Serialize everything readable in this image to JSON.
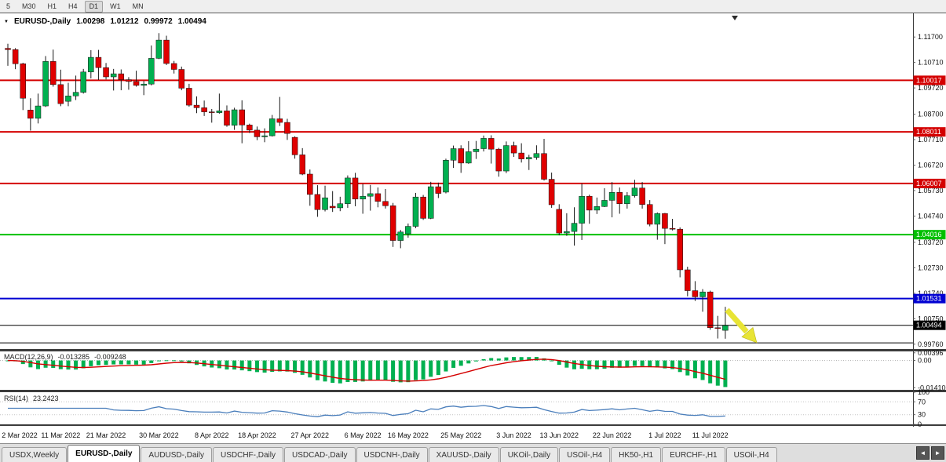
{
  "toolbar": {
    "timeframes": [
      "5",
      "M30",
      "H1",
      "H4",
      "D1",
      "W1",
      "MN"
    ],
    "active_timeframe": "D1"
  },
  "icons": {
    "dropdown": "▼",
    "scroll_left": "◄",
    "scroll_right": "►"
  },
  "chart": {
    "symbol": "EURUSD-,Daily",
    "ohlc": {
      "open": "1.00298",
      "high": "1.01212",
      "low": "0.99972",
      "close": "1.00494"
    }
  },
  "price_axis": {
    "ticks": [
      "1.11700",
      "1.10710",
      "1.09720",
      "1.08700",
      "1.07710",
      "1.06720",
      "1.05730",
      "1.04740",
      "1.03720",
      "1.02730",
      "1.01740",
      "1.00750",
      "0.99760"
    ]
  },
  "price_panel": {
    "levels": [
      {
        "price": 1.10017,
        "label": "1.10017",
        "color": "#d40000",
        "width": 2
      },
      {
        "price": 1.08011,
        "label": "1.08011",
        "color": "#d40000",
        "width": 2
      },
      {
        "price": 1.06007,
        "label": "1.06007",
        "color": "#d40000",
        "width": 2
      },
      {
        "price": 1.04016,
        "label": "1.04016",
        "color": "#00c000",
        "width": 2
      },
      {
        "price": 1.01531,
        "label": "1.01531",
        "color": "#0000d2",
        "width": 2
      },
      {
        "price": 0.9981,
        "label": "",
        "color": "#000000",
        "width": 1
      }
    ],
    "current_price": {
      "value": 1.00494,
      "label": "1.00494",
      "color": "#000000"
    },
    "arrow_color": "#e8e435"
  },
  "macd": {
    "title": "MACD(12,26,9)",
    "value_main": "-0.013285",
    "value_signal": "-0.009248",
    "hist_color": "#00b050",
    "signal_color": "#d40000",
    "ylim": [
      -0.0152,
      0.0047
    ],
    "scale_labels": [
      {
        "value": 0.00396,
        "label": "0.00396"
      },
      {
        "value": 0,
        "label": "0.00"
      },
      {
        "value": -0.0141,
        "label": "-0.01410"
      }
    ]
  },
  "rsi": {
    "title": "RSI(14)",
    "value": "23.2423",
    "period": 14,
    "line_color": "#4a7ebb",
    "dotted_levels": [
      70,
      30
    ],
    "scale_labels": [
      {
        "value": 100,
        "label": "100"
      },
      {
        "value": 70,
        "label": "70"
      },
      {
        "value": 30,
        "label": "30"
      },
      {
        "value": 0,
        "label": "0"
      }
    ]
  },
  "tabs": {
    "active_index": 1,
    "items": [
      "USDX,Weekly",
      "EURUSD-,Daily",
      "AUDUSD-,Daily",
      "USDCHF-,Daily",
      "USDCAD-,Daily",
      "USDCNH-,Daily",
      "XAUUSD-,Daily",
      "UKOil-,Daily",
      "USOil-,H4",
      "HK50-,H1",
      "EURCHF-,H1",
      "USOil-,H4"
    ]
  },
  "chart_data": {
    "type": "candlestick",
    "title": "EURUSD-,Daily",
    "ylim": [
      0.9957,
      1.1262
    ],
    "up_color": "#00b050",
    "down_color": "#e00000",
    "x_labels": [
      {
        "index": 0,
        "label": "2 Mar 2022"
      },
      {
        "index": 7,
        "label": "11 Mar 2022"
      },
      {
        "index": 13,
        "label": "21 Mar 2022"
      },
      {
        "index": 20,
        "label": "30 Mar 2022"
      },
      {
        "index": 27,
        "label": "8 Apr 2022"
      },
      {
        "index": 33,
        "label": "18 Apr 2022"
      },
      {
        "index": 40,
        "label": "27 Apr 2022"
      },
      {
        "index": 47,
        "label": "6 May 2022"
      },
      {
        "index": 53,
        "label": "16 May 2022"
      },
      {
        "index": 60,
        "label": "25 May 2022"
      },
      {
        "index": 67,
        "label": "3 Jun 2022"
      },
      {
        "index": 73,
        "label": "13 Jun 2022"
      },
      {
        "index": 80,
        "label": "22 Jun 2022"
      },
      {
        "index": 87,
        "label": "1 Jul 2022"
      },
      {
        "index": 93,
        "label": "11 Jul 2022"
      }
    ],
    "candles": [
      [
        1.1126,
        1.1144,
        1.1058,
        1.1121
      ],
      [
        1.1121,
        1.1127,
        1.1045,
        1.1066
      ],
      [
        1.1066,
        1.107,
        1.0886,
        1.0932
      ],
      [
        1.0886,
        1.0932,
        1.0806,
        1.0854
      ],
      [
        1.0854,
        1.095,
        1.0834,
        1.0902
      ],
      [
        1.0902,
        1.1096,
        1.0898,
        1.1075
      ],
      [
        1.1075,
        1.1121,
        1.0977,
        1.0985
      ],
      [
        1.0985,
        1.1043,
        1.0901,
        1.0911
      ],
      [
        1.092,
        1.0992,
        1.0901,
        1.0941
      ],
      [
        1.0941,
        1.102,
        1.0925,
        1.0955
      ],
      [
        1.0955,
        1.1046,
        1.095,
        1.1034
      ],
      [
        1.1034,
        1.1119,
        1.1009,
        1.1091
      ],
      [
        1.1091,
        1.112,
        1.1003,
        1.1051
      ],
      [
        1.1051,
        1.1069,
        1.1005,
        1.1015
      ],
      [
        1.1015,
        1.1046,
        1.0962,
        1.1027
      ],
      [
        1.1027,
        1.1044,
        1.0963,
        1.1004
      ],
      [
        1.1004,
        1.1014,
        1.0965,
        1.0997
      ],
      [
        1.0997,
        1.1039,
        1.0977,
        1.0982
      ],
      [
        1.0982,
        1.0999,
        1.0944,
        1.0987
      ],
      [
        1.0987,
        1.1137,
        1.0982,
        1.1087
      ],
      [
        1.1087,
        1.1185,
        1.1084,
        1.1158
      ],
      [
        1.1158,
        1.1175,
        1.1061,
        1.1067
      ],
      [
        1.1067,
        1.1077,
        1.1028,
        1.1044
      ],
      [
        1.1044,
        1.1055,
        1.0963,
        1.0971
      ],
      [
        1.0971,
        1.0988,
        1.0899,
        1.0905
      ],
      [
        1.0905,
        1.0939,
        1.0874,
        1.0895
      ],
      [
        1.0895,
        1.0923,
        1.0863,
        1.0879
      ],
      [
        1.0879,
        1.089,
        1.0837,
        1.0876
      ],
      [
        1.0876,
        1.095,
        1.0872,
        1.0883
      ],
      [
        1.0883,
        1.0904,
        1.0821,
        1.0827
      ],
      [
        1.0827,
        1.0895,
        1.0809,
        1.0887
      ],
      [
        1.0887,
        1.0924,
        1.0757,
        1.0828
      ],
      [
        1.0828,
        1.0833,
        1.0797,
        1.0808
      ],
      [
        1.0808,
        1.0822,
        1.0769,
        1.0782
      ],
      [
        1.0782,
        1.0815,
        1.0761,
        1.0786
      ],
      [
        1.0786,
        1.0867,
        1.0783,
        1.0852
      ],
      [
        1.0852,
        1.0937,
        1.0824,
        1.0838
      ],
      [
        1.0838,
        1.0852,
        1.077,
        1.0795
      ],
      [
        1.078,
        1.0784,
        1.0697,
        1.0712
      ],
      [
        1.0712,
        1.0738,
        1.0633,
        1.0637
      ],
      [
        1.0637,
        1.0655,
        1.0514,
        1.0558
      ],
      [
        1.0558,
        1.0594,
        1.0471,
        1.0499
      ],
      [
        1.0499,
        1.0592,
        1.0492,
        1.0545
      ],
      [
        1.0512,
        1.0571,
        1.049,
        1.0506
      ],
      [
        1.0506,
        1.0549,
        1.0493,
        1.0522
      ],
      [
        1.0522,
        1.0632,
        1.0506,
        1.0622
      ],
      [
        1.0622,
        1.0642,
        1.0512,
        1.054
      ],
      [
        1.054,
        1.0599,
        1.0483,
        1.0551
      ],
      [
        1.0551,
        1.0595,
        1.0495,
        1.0561
      ],
      [
        1.0561,
        1.0585,
        1.0508,
        1.0531
      ],
      [
        1.0531,
        1.0579,
        1.0503,
        1.0514
      ],
      [
        1.0514,
        1.0525,
        1.0354,
        1.0379
      ],
      [
        1.0379,
        1.042,
        1.0349,
        1.0412
      ],
      [
        1.0405,
        1.0445,
        1.039,
        1.0434
      ],
      [
        1.0434,
        1.0564,
        1.0427,
        1.0548
      ],
      [
        1.0548,
        1.0556,
        1.0459,
        1.0465
      ],
      [
        1.0465,
        1.0607,
        1.0462,
        1.0588
      ],
      [
        1.0588,
        1.0604,
        1.0544,
        1.0562
      ],
      [
        1.0567,
        1.0697,
        1.0562,
        1.0691
      ],
      [
        1.0691,
        1.0748,
        1.0661,
        1.0736
      ],
      [
        1.0736,
        1.0749,
        1.0642,
        1.068
      ],
      [
        1.068,
        1.0765,
        1.0677,
        1.0724
      ],
      [
        1.0724,
        1.0766,
        1.0696,
        1.0734
      ],
      [
        1.0736,
        1.0787,
        1.0725,
        1.0776
      ],
      [
        1.0776,
        1.0788,
        1.0678,
        1.0734
      ],
      [
        1.0734,
        1.0739,
        1.0627,
        1.0649
      ],
      [
        1.0649,
        1.0764,
        1.0641,
        1.0748
      ],
      [
        1.0748,
        1.0763,
        1.0704,
        1.0719
      ],
      [
        1.0719,
        1.0757,
        1.0682,
        1.0696
      ],
      [
        1.0696,
        1.0712,
        1.0653,
        1.0702
      ],
      [
        1.0702,
        1.0749,
        1.0693,
        1.0717
      ],
      [
        1.0717,
        1.0774,
        1.0612,
        1.0617
      ],
      [
        1.0617,
        1.0643,
        1.0506,
        1.0518
      ],
      [
        1.05,
        1.052,
        1.0399,
        1.0408
      ],
      [
        1.0408,
        1.0485,
        1.0397,
        1.0414
      ],
      [
        1.0414,
        1.0508,
        1.0359,
        1.0446
      ],
      [
        1.0446,
        1.0601,
        1.0381,
        1.0551
      ],
      [
        1.0551,
        1.0557,
        1.0444,
        1.0497
      ],
      [
        1.0497,
        1.0546,
        1.0482,
        1.0511
      ],
      [
        1.0511,
        1.0582,
        1.0509,
        1.0535
      ],
      [
        1.0535,
        1.0606,
        1.0469,
        1.0566
      ],
      [
        1.0566,
        1.0585,
        1.0483,
        1.0522
      ],
      [
        1.0522,
        1.0567,
        1.0503,
        1.0553
      ],
      [
        1.0553,
        1.0615,
        1.0546,
        1.0583
      ],
      [
        1.0583,
        1.0606,
        1.0503,
        1.0519
      ],
      [
        1.0519,
        1.0536,
        1.0434,
        1.0442
      ],
      [
        1.0442,
        1.0488,
        1.0382,
        1.0484
      ],
      [
        1.0484,
        1.0486,
        1.0365,
        1.0426
      ],
      [
        1.0426,
        1.0463,
        1.0418,
        1.0423
      ],
      [
        1.0423,
        1.043,
        1.0236,
        1.0265
      ],
      [
        1.0265,
        1.0277,
        1.0162,
        1.0184
      ],
      [
        1.0184,
        1.0221,
        1.0144,
        1.016
      ],
      [
        1.016,
        1.019,
        1.0102,
        1.0179
      ],
      [
        1.0179,
        1.0184,
        1.0032,
        1.004
      ],
      [
        1.004,
        1.0086,
        0.9998,
        1.0037
      ],
      [
        1.00298,
        1.01212,
        0.99972,
        1.00494
      ]
    ]
  }
}
